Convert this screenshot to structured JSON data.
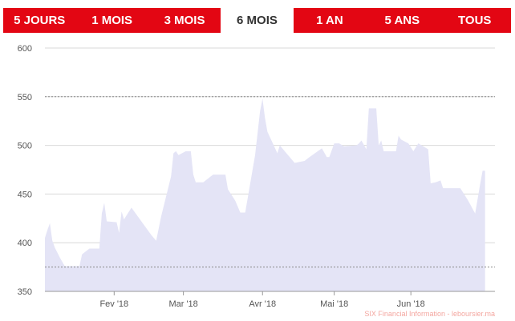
{
  "tabs": [
    {
      "label": "5 JOURS",
      "active": false
    },
    {
      "label": "1 MOIS",
      "active": false
    },
    {
      "label": "3 MOIS",
      "active": false
    },
    {
      "label": "6 MOIS",
      "active": true
    },
    {
      "label": "1 AN",
      "active": false
    },
    {
      "label": "5 ANS",
      "active": false
    },
    {
      "label": "TOUS",
      "active": false
    }
  ],
  "colors": {
    "accent": "#e30613",
    "area_fill": "#e4e4f6",
    "grid": "#d9d9d9",
    "reference_line": "#888888"
  },
  "chart_data": {
    "type": "area",
    "ylim": [
      350,
      600
    ],
    "yticks": [
      350,
      400,
      450,
      500,
      550,
      600
    ],
    "x_start": "2018-01-04",
    "x_end": "2018-07-05",
    "xtick_labels": [
      {
        "date": "2018-02-01",
        "label": "Fev '18"
      },
      {
        "date": "2018-03-01",
        "label": "Mar '18"
      },
      {
        "date": "2018-04-02",
        "label": "Avr '18"
      },
      {
        "date": "2018-05-01",
        "label": "Mai '18"
      },
      {
        "date": "2018-06-01",
        "label": "Jun '18"
      }
    ],
    "reference_lines": [
      {
        "value": 550,
        "style": "dashed"
      },
      {
        "value": 375,
        "style": "dashed"
      }
    ],
    "grid": true,
    "series": [
      {
        "points": [
          [
            "2018-01-04",
            405
          ],
          [
            "2018-01-05",
            413
          ],
          [
            "2018-01-06",
            420
          ],
          [
            "2018-01-07",
            402
          ],
          [
            "2018-01-08",
            395
          ],
          [
            "2018-01-10",
            385
          ],
          [
            "2018-01-12",
            376
          ],
          [
            "2018-01-15",
            376
          ],
          [
            "2018-01-18",
            376
          ],
          [
            "2018-01-19",
            388
          ],
          [
            "2018-01-22",
            394
          ],
          [
            "2018-01-26",
            394
          ],
          [
            "2018-01-27",
            430
          ],
          [
            "2018-01-28",
            441
          ],
          [
            "2018-01-29",
            422
          ],
          [
            "2018-02-02",
            421
          ],
          [
            "2018-02-03",
            410
          ],
          [
            "2018-02-04",
            432
          ],
          [
            "2018-02-05",
            424
          ],
          [
            "2018-02-08",
            436
          ],
          [
            "2018-02-12",
            422
          ],
          [
            "2018-02-16",
            408
          ],
          [
            "2018-02-18",
            402
          ],
          [
            "2018-02-20",
            427
          ],
          [
            "2018-02-24",
            468
          ],
          [
            "2018-02-25",
            492
          ],
          [
            "2018-02-26",
            494
          ],
          [
            "2018-02-27",
            490
          ],
          [
            "2018-03-02",
            494
          ],
          [
            "2018-03-04",
            494
          ],
          [
            "2018-03-05",
            470
          ],
          [
            "2018-03-06",
            462
          ],
          [
            "2018-03-09",
            462
          ],
          [
            "2018-03-13",
            470
          ],
          [
            "2018-03-18",
            470
          ],
          [
            "2018-03-19",
            455
          ],
          [
            "2018-03-22",
            443
          ],
          [
            "2018-03-24",
            431
          ],
          [
            "2018-03-26",
            431
          ],
          [
            "2018-03-30",
            490
          ],
          [
            "2018-04-01",
            535
          ],
          [
            "2018-04-02",
            548
          ],
          [
            "2018-04-03",
            528
          ],
          [
            "2018-04-04",
            514
          ],
          [
            "2018-04-06",
            503
          ],
          [
            "2018-04-08",
            492
          ],
          [
            "2018-04-09",
            500
          ],
          [
            "2018-04-13",
            488
          ],
          [
            "2018-04-15",
            482
          ],
          [
            "2018-04-19",
            484
          ],
          [
            "2018-04-21",
            488
          ],
          [
            "2018-04-26",
            497
          ],
          [
            "2018-04-28",
            488
          ],
          [
            "2018-04-29",
            488
          ],
          [
            "2018-05-01",
            502
          ],
          [
            "2018-05-03",
            502
          ],
          [
            "2018-05-05",
            499
          ],
          [
            "2018-05-10",
            500
          ],
          [
            "2018-05-11",
            502
          ],
          [
            "2018-05-12",
            505
          ],
          [
            "2018-05-14",
            496
          ],
          [
            "2018-05-15",
            538
          ],
          [
            "2018-05-18",
            538
          ],
          [
            "2018-05-19",
            500
          ],
          [
            "2018-05-20",
            505
          ],
          [
            "2018-05-21",
            494
          ],
          [
            "2018-05-26",
            494
          ],
          [
            "2018-05-27",
            510
          ],
          [
            "2018-05-28",
            506
          ],
          [
            "2018-05-31",
            502
          ],
          [
            "2018-06-02",
            494
          ],
          [
            "2018-06-04",
            502
          ],
          [
            "2018-06-08",
            496
          ],
          [
            "2018-06-09",
            461
          ],
          [
            "2018-06-11",
            462
          ],
          [
            "2018-06-13",
            464
          ],
          [
            "2018-06-14",
            456
          ],
          [
            "2018-06-20",
            456
          ],
          [
            "2018-06-21",
            456
          ],
          [
            "2018-06-24",
            444
          ],
          [
            "2018-06-27",
            430
          ],
          [
            "2018-06-29",
            460
          ],
          [
            "2018-06-30",
            474
          ],
          [
            "2018-07-01",
            474
          ]
        ]
      }
    ]
  },
  "credit": "SIX Financial Information - leboursier.ma"
}
